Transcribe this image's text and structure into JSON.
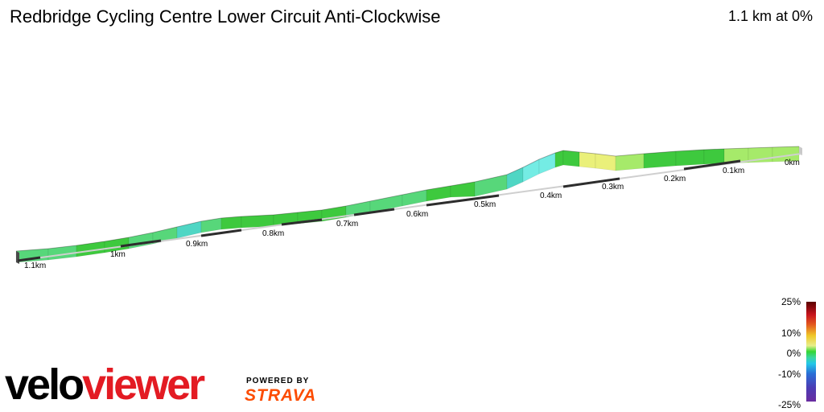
{
  "header": {
    "title": "Redbridge Cycling Centre Lower Circuit Anti-Clockwise",
    "summary": "1.1 km at 0%"
  },
  "profile": {
    "distance_markers": [
      "0km",
      "0.1km",
      "0.2km",
      "0.3km",
      "0.4km",
      "0.5km",
      "0.6km",
      "0.7km",
      "0.8km",
      "0.9km",
      "1km",
      "1.1km"
    ],
    "colors": {
      "green": "#3ec93e",
      "mint": "#57d77a",
      "teal": "#4fd6c4",
      "cyan": "#74ece4",
      "yellow": "#eaf07a",
      "lightgreen": "#a6ea6a",
      "side": "#c9c9c9",
      "base_line": "#2d2d2d"
    }
  },
  "legend": {
    "labels": [
      "25%",
      "10%",
      "0%",
      "-10%",
      "-25%"
    ]
  },
  "branding": {
    "logo_part1": "velo",
    "logo_part2": "viewer",
    "powered_by": "POWERED BY",
    "strava": "STRAVA",
    "brand_red": "#e31b23",
    "strava_orange": "#fc4c02"
  }
}
